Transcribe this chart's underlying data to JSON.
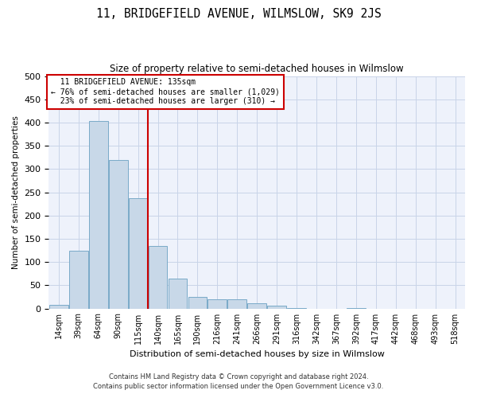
{
  "title": "11, BRIDGEFIELD AVENUE, WILMSLOW, SK9 2JS",
  "subtitle": "Size of property relative to semi-detached houses in Wilmslow",
  "xlabel": "Distribution of semi-detached houses by size in Wilmslow",
  "ylabel": "Number of semi-detached properties",
  "bar_labels": [
    "14sqm",
    "39sqm",
    "64sqm",
    "90sqm",
    "115sqm",
    "140sqm",
    "165sqm",
    "190sqm",
    "216sqm",
    "241sqm",
    "266sqm",
    "291sqm",
    "316sqm",
    "342sqm",
    "367sqm",
    "392sqm",
    "417sqm",
    "442sqm",
    "468sqm",
    "493sqm",
    "518sqm"
  ],
  "bar_values": [
    7,
    124,
    403,
    320,
    237,
    135,
    65,
    25,
    20,
    20,
    12,
    6,
    1,
    0,
    0,
    1,
    0,
    0,
    0,
    0,
    0
  ],
  "bar_color": "#c8d8e8",
  "bar_edge_color": "#7aaac8",
  "property_label": "11 BRIDGEFIELD AVENUE: 135sqm",
  "pct_smaller": 76,
  "count_smaller": 1029,
  "pct_larger": 23,
  "count_larger": 310,
  "vline_x_index": 4.5,
  "annotation_box_color": "#ffffff",
  "annotation_box_edge_color": "#cc0000",
  "grid_color": "#c8d4e8",
  "background_color": "#eef2fb",
  "ylim": [
    0,
    500
  ],
  "footer_line1": "Contains HM Land Registry data © Crown copyright and database right 2024.",
  "footer_line2": "Contains public sector information licensed under the Open Government Licence v3.0."
}
